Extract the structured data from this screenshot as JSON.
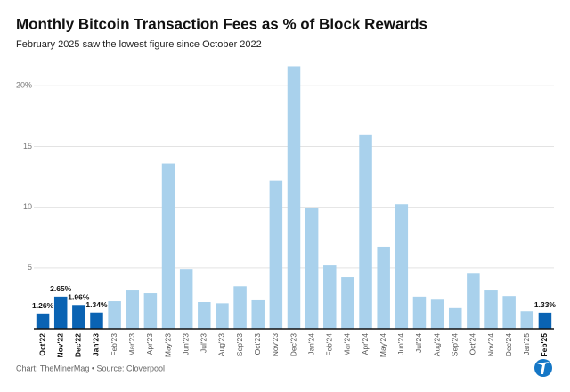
{
  "chart_data": {
    "type": "bar",
    "title": "Monthly Bitcoin Transaction Fees as % of Block Rewards",
    "subtitle": "February 2025 saw the lowest figure since October 2022",
    "footer": "Chart: TheMinerMag • Source: Cloverpool",
    "categories": [
      "Oct'22",
      "Nov'22",
      "Dec'22",
      "Jan'23",
      "Feb'23",
      "Mar'23",
      "Apr'23",
      "May'23",
      "Jun'23",
      "Jul'23",
      "Aug'23",
      "Sep'23",
      "Oct'23",
      "Nov'23",
      "Dec'23",
      "Jan'24",
      "Feb'24",
      "Mar'24",
      "Apr'24",
      "May'24",
      "Jun'24",
      "Jul'24",
      "Aug'24",
      "Sep'24",
      "Oct'24",
      "Nov'24",
      "Dec'24",
      "Jan'25",
      "Feb'25"
    ],
    "values": [
      1.26,
      2.65,
      1.96,
      1.34,
      2.27,
      3.15,
      2.93,
      13.6,
      4.9,
      2.2,
      2.1,
      3.5,
      2.35,
      12.2,
      21.6,
      9.9,
      5.2,
      4.25,
      16.0,
      6.75,
      10.25,
      2.65,
      2.4,
      1.7,
      4.6,
      3.15,
      2.7,
      1.45,
      1.33
    ],
    "value_labels": [
      "1.26%",
      "2.65%",
      "1.96%",
      "1.34%",
      null,
      null,
      null,
      null,
      null,
      null,
      null,
      null,
      null,
      null,
      null,
      null,
      null,
      null,
      null,
      null,
      null,
      null,
      null,
      null,
      null,
      null,
      null,
      null,
      "1.33%"
    ],
    "colors": [
      "#0a63b3",
      "#0a63b3",
      "#0a63b3",
      "#0a63b3",
      "#a9d1ec",
      "#a9d1ec",
      "#a9d1ec",
      "#a9d1ec",
      "#a9d1ec",
      "#a9d1ec",
      "#a9d1ec",
      "#a9d1ec",
      "#a9d1ec",
      "#a9d1ec",
      "#a9d1ec",
      "#a9d1ec",
      "#a9d1ec",
      "#a9d1ec",
      "#a9d1ec",
      "#a9d1ec",
      "#a9d1ec",
      "#a9d1ec",
      "#a9d1ec",
      "#a9d1ec",
      "#a9d1ec",
      "#a9d1ec",
      "#a9d1ec",
      "#a9d1ec",
      "#0a63b3"
    ],
    "ylim": [
      0,
      22
    ],
    "yticks": [
      5,
      10,
      15,
      {
        "value": 20,
        "label": "20%"
      }
    ],
    "grid": true
  }
}
